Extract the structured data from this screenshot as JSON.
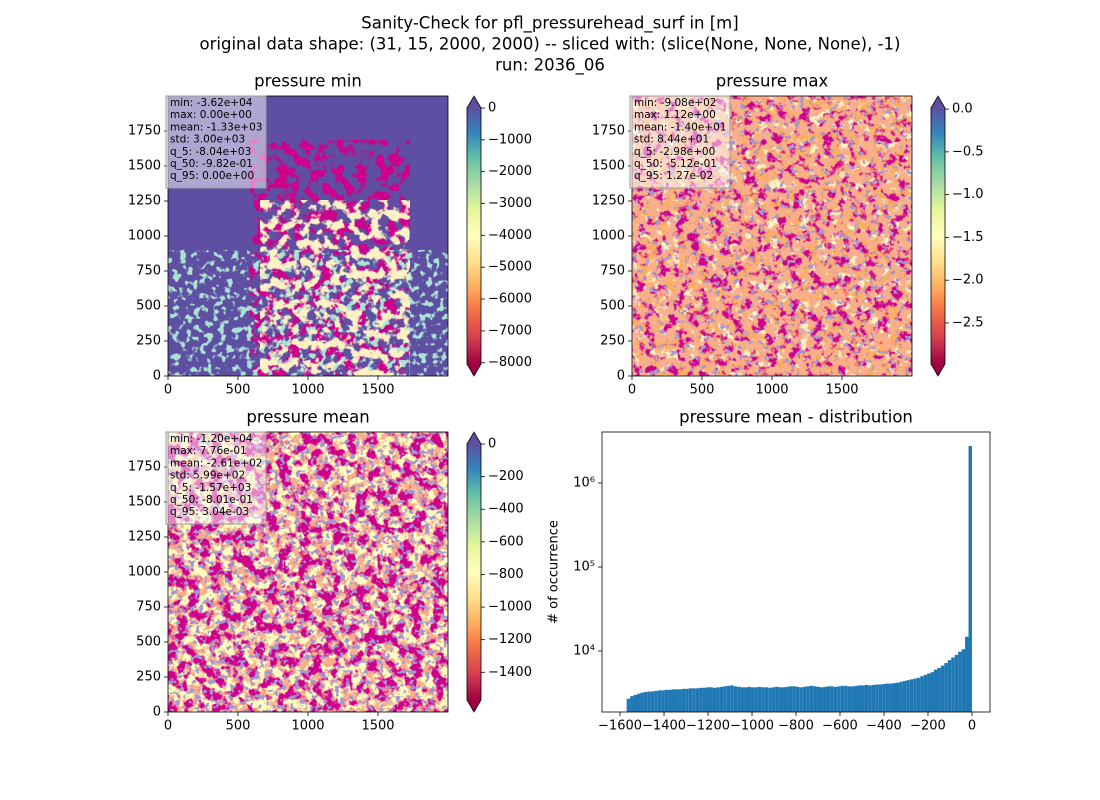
{
  "suptitle": [
    "Sanity-Check for pfl_pressurehead_surf in [m]",
    "original data shape: (31, 15, 2000, 2000) -- sliced with: (slice(None, None, None), -1)",
    "run: 2036_06"
  ],
  "chart_data": [
    {
      "type": "heatmap",
      "title": "pressure min",
      "xlim": [
        0,
        2000
      ],
      "ylim": [
        0,
        2000
      ],
      "xticks": [
        0,
        500,
        1000,
        1500
      ],
      "yticks": [
        0,
        250,
        500,
        750,
        1000,
        1250,
        1500,
        1750
      ],
      "stats": [
        "min: -3.62e+04",
        "max: 0.00e+00",
        "mean: -1.33e+03",
        "std: 3.00e+03",
        "q_5: -8.04e+03",
        "q_50: -9.82e-01",
        "q_95: 0.00e+00"
      ],
      "colorbar": {
        "lim": [
          -8040,
          0
        ],
        "ticks": [
          {
            "value": 0,
            "label": "0"
          },
          {
            "value": -1000,
            "label": "−1000"
          },
          {
            "value": -2000,
            "label": "−2000"
          },
          {
            "value": -3000,
            "label": "−3000"
          },
          {
            "value": -4000,
            "label": "−4000"
          },
          {
            "value": -5000,
            "label": "−5000"
          },
          {
            "value": -6000,
            "label": "−6000"
          },
          {
            "value": -7000,
            "label": "−7000"
          },
          {
            "value": -8000,
            "label": "−8000"
          }
        ]
      }
    },
    {
      "type": "heatmap",
      "title": "pressure max",
      "xlim": [
        0,
        2000
      ],
      "ylim": [
        0,
        2000
      ],
      "xticks": [
        0,
        500,
        1000,
        1500
      ],
      "yticks": [
        0,
        250,
        500,
        750,
        1000,
        1250,
        1500,
        1750
      ],
      "stats": [
        "min: -9.08e+02",
        "max: 1.12e+00",
        "mean: -1.40e+01",
        "std: 8.44e+01",
        "q_5: -2.98e+00",
        "q_50: -5.12e-01",
        "q_95: 1.27e-02"
      ],
      "colorbar": {
        "lim": [
          -2.98,
          0.0127
        ],
        "ticks": [
          {
            "value": 0,
            "label": "0.0"
          },
          {
            "value": -0.5,
            "label": "−0.5"
          },
          {
            "value": -1,
            "label": "−1.0"
          },
          {
            "value": -1.5,
            "label": "−1.5"
          },
          {
            "value": -2,
            "label": "−2.0"
          },
          {
            "value": -2.5,
            "label": "−2.5"
          }
        ]
      }
    },
    {
      "type": "heatmap",
      "title": "pressure mean",
      "xlim": [
        0,
        2000
      ],
      "ylim": [
        0,
        2000
      ],
      "xticks": [
        0,
        500,
        1000,
        1500
      ],
      "yticks": [
        0,
        250,
        500,
        750,
        1000,
        1250,
        1500,
        1750
      ],
      "stats": [
        "min: -1.20e+04",
        "max: 7.76e-01",
        "mean: -2.61e+02",
        "std: 5.99e+02",
        "q_5: -1.57e+03",
        "q_50: -8.01e-01",
        "q_95: 3.04e-03"
      ],
      "colorbar": {
        "lim": [
          -1570,
          0.00304
        ],
        "ticks": [
          {
            "value": 0,
            "label": "0"
          },
          {
            "value": -200,
            "label": "−200"
          },
          {
            "value": -400,
            "label": "−400"
          },
          {
            "value": -600,
            "label": "−600"
          },
          {
            "value": -800,
            "label": "−800"
          },
          {
            "value": -1000,
            "label": "−1000"
          },
          {
            "value": -1200,
            "label": "−1200"
          },
          {
            "value": -1400,
            "label": "−1400"
          }
        ]
      }
    },
    {
      "type": "histogram",
      "title": "pressure mean - distribution",
      "ylabel": "# of occurrence",
      "color": "#1f77b4",
      "log_y": true,
      "xlim": [
        -1682,
        82
      ],
      "ylim": [
        1880,
        4050000
      ],
      "xticks": [
        {
          "value": -1600,
          "label": "−1600"
        },
        {
          "value": -1400,
          "label": "−1400"
        },
        {
          "value": -1200,
          "label": "−1200"
        },
        {
          "value": -1000,
          "label": "−1000"
        },
        {
          "value": -800,
          "label": "−800"
        },
        {
          "value": -600,
          "label": "−600"
        },
        {
          "value": -400,
          "label": "−400"
        },
        {
          "value": -200,
          "label": "−200"
        },
        {
          "value": 0,
          "label": "0"
        }
      ],
      "yticks": [
        {
          "value": 10000,
          "label": "10⁴"
        },
        {
          "value": 100000,
          "label": "10⁵"
        },
        {
          "value": 1000000,
          "label": "10⁶"
        }
      ],
      "bins": [
        -1570,
        -1554.3,
        -1538.6,
        -1522.9,
        -1507.2,
        -1491.5,
        -1475.8,
        -1460.1,
        -1444.4,
        -1428.7,
        -1413,
        -1397.3,
        -1381.6,
        -1365.9,
        -1350.2,
        -1334.5,
        -1318.8,
        -1303.1,
        -1287.4,
        -1271.7,
        -1256,
        -1240.3,
        -1224.6,
        -1208.9,
        -1193.2,
        -1177.5,
        -1161.8,
        -1146.1,
        -1130.4,
        -1114.7,
        -1099,
        -1083.3,
        -1067.6,
        -1051.9,
        -1036.2,
        -1020.5,
        -1004.8,
        -989.1,
        -973.4,
        -957.7,
        -942,
        -926.3,
        -910.6,
        -894.9,
        -879.2,
        -863.5,
        -847.8,
        -832.1,
        -816.4,
        -800.7,
        -785,
        -769.3,
        -753.6,
        -737.9,
        -722.2,
        -706.5,
        -690.8,
        -675.1,
        -659.4,
        -643.7,
        -628,
        -612.3,
        -596.6,
        -580.9,
        -565.2,
        -549.5,
        -533.8,
        -518.1,
        -502.4,
        -486.7,
        -471,
        -455.3,
        -439.6,
        -423.9,
        -408.2,
        -392.5,
        -376.8,
        -361.1,
        -345.4,
        -329.7,
        -314,
        -298.3,
        -282.6,
        -266.9,
        -251.2,
        -235.5,
        -219.8,
        -204.1,
        -188.4,
        -172.7,
        -157,
        -141.3,
        -125.6,
        -109.9,
        -94.2,
        -78.5,
        -62.8,
        -47.1,
        -31.4,
        -15.7,
        0
      ],
      "values": [
        2700,
        2900,
        3000,
        3100,
        3200,
        3250,
        3300,
        3300,
        3350,
        3400,
        3400,
        3450,
        3450,
        3500,
        3500,
        3500,
        3550,
        3550,
        3600,
        3600,
        3600,
        3650,
        3650,
        3700,
        3700,
        3650,
        3700,
        3750,
        3800,
        3850,
        3900,
        3800,
        3750,
        3700,
        3700,
        3750,
        3700,
        3700,
        3750,
        3700,
        3700,
        3650,
        3700,
        3750,
        3700,
        3700,
        3750,
        3800,
        3800,
        3750,
        3700,
        3750,
        3800,
        3850,
        3800,
        3750,
        3700,
        3750,
        3800,
        3800,
        3750,
        3800,
        3850,
        3850,
        3800,
        3800,
        3850,
        3900,
        3900,
        3950,
        3900,
        3950,
        4000,
        4000,
        4050,
        4100,
        4100,
        4150,
        4200,
        4300,
        4400,
        4500,
        4600,
        4700,
        4800,
        5000,
        5200,
        5400,
        5600,
        6000,
        6300,
        6700,
        7200,
        7800,
        8400,
        9000,
        9800,
        10500,
        14800,
        2750000
      ]
    }
  ]
}
